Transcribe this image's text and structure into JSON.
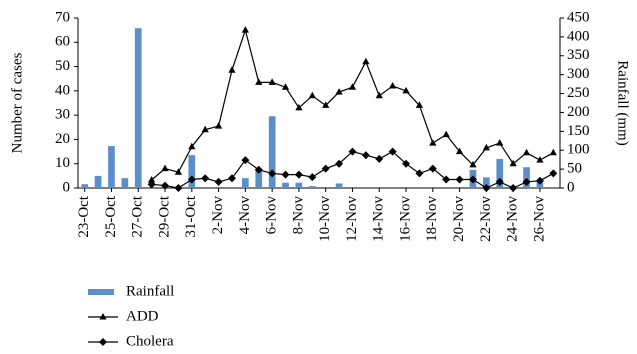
{
  "chart_data": {
    "type": "bar-line",
    "y_label": "Number of cases",
    "y2_label": "Rainfall (mm)",
    "categories": [
      "23-Oct",
      null,
      "25-Oct",
      null,
      "27-Oct",
      null,
      "29-Oct",
      null,
      "31-Oct",
      null,
      "2-Nov",
      null,
      "4-Nov",
      null,
      "6-Nov",
      null,
      "8-Nov",
      null,
      "10-Nov",
      null,
      "12-Nov",
      null,
      "14-Nov",
      null,
      "16-Nov",
      null,
      "18-Nov",
      null,
      "20-Nov",
      null,
      "22-Nov",
      null,
      "24-Nov",
      null,
      "26-Nov",
      null
    ],
    "ylim": [
      0,
      70
    ],
    "yticks": [
      0,
      10,
      20,
      30,
      40,
      50,
      60,
      70
    ],
    "y2lim": [
      0,
      450
    ],
    "y2ticks": [
      0,
      50,
      100,
      150,
      200,
      250,
      300,
      350,
      400,
      450
    ],
    "series": [
      {
        "name": "Rainfall",
        "type": "bar",
        "axis": "y2",
        "color": "#5b8fc9",
        "values": [
          10,
          32,
          111,
          26,
          423,
          0,
          0,
          0,
          87,
          0,
          3,
          3,
          26,
          45,
          190,
          14,
          14,
          5,
          0,
          12,
          0,
          0,
          0,
          0,
          0,
          0,
          0,
          0,
          0,
          48,
          28,
          77,
          0,
          55,
          20,
          0
        ]
      },
      {
        "name": "ADD",
        "type": "line",
        "marker": "triangle",
        "color": "#000000",
        "values": [
          null,
          null,
          null,
          null,
          null,
          3.3,
          8,
          6.5,
          17,
          24,
          25.5,
          48.5,
          65,
          43.5,
          43.5,
          41.5,
          33,
          38,
          34,
          39.5,
          41.5,
          52,
          38,
          42,
          40,
          34,
          18.5,
          22,
          15,
          9.5,
          16.5,
          18.5,
          10,
          14.5,
          11.5,
          14.5
        ]
      },
      {
        "name": "Cholera",
        "type": "line",
        "marker": "diamond",
        "color": "#000000",
        "values": [
          null,
          null,
          null,
          null,
          null,
          1.5,
          1,
          0,
          3.5,
          4,
          2.5,
          4,
          11.5,
          7.5,
          6,
          5.5,
          5.5,
          4.5,
          8,
          10,
          15,
          13.5,
          12,
          15,
          10,
          6,
          8,
          3.5,
          3.5,
          3.5,
          0,
          2.5,
          0,
          2.5,
          3,
          6
        ]
      }
    ]
  }
}
